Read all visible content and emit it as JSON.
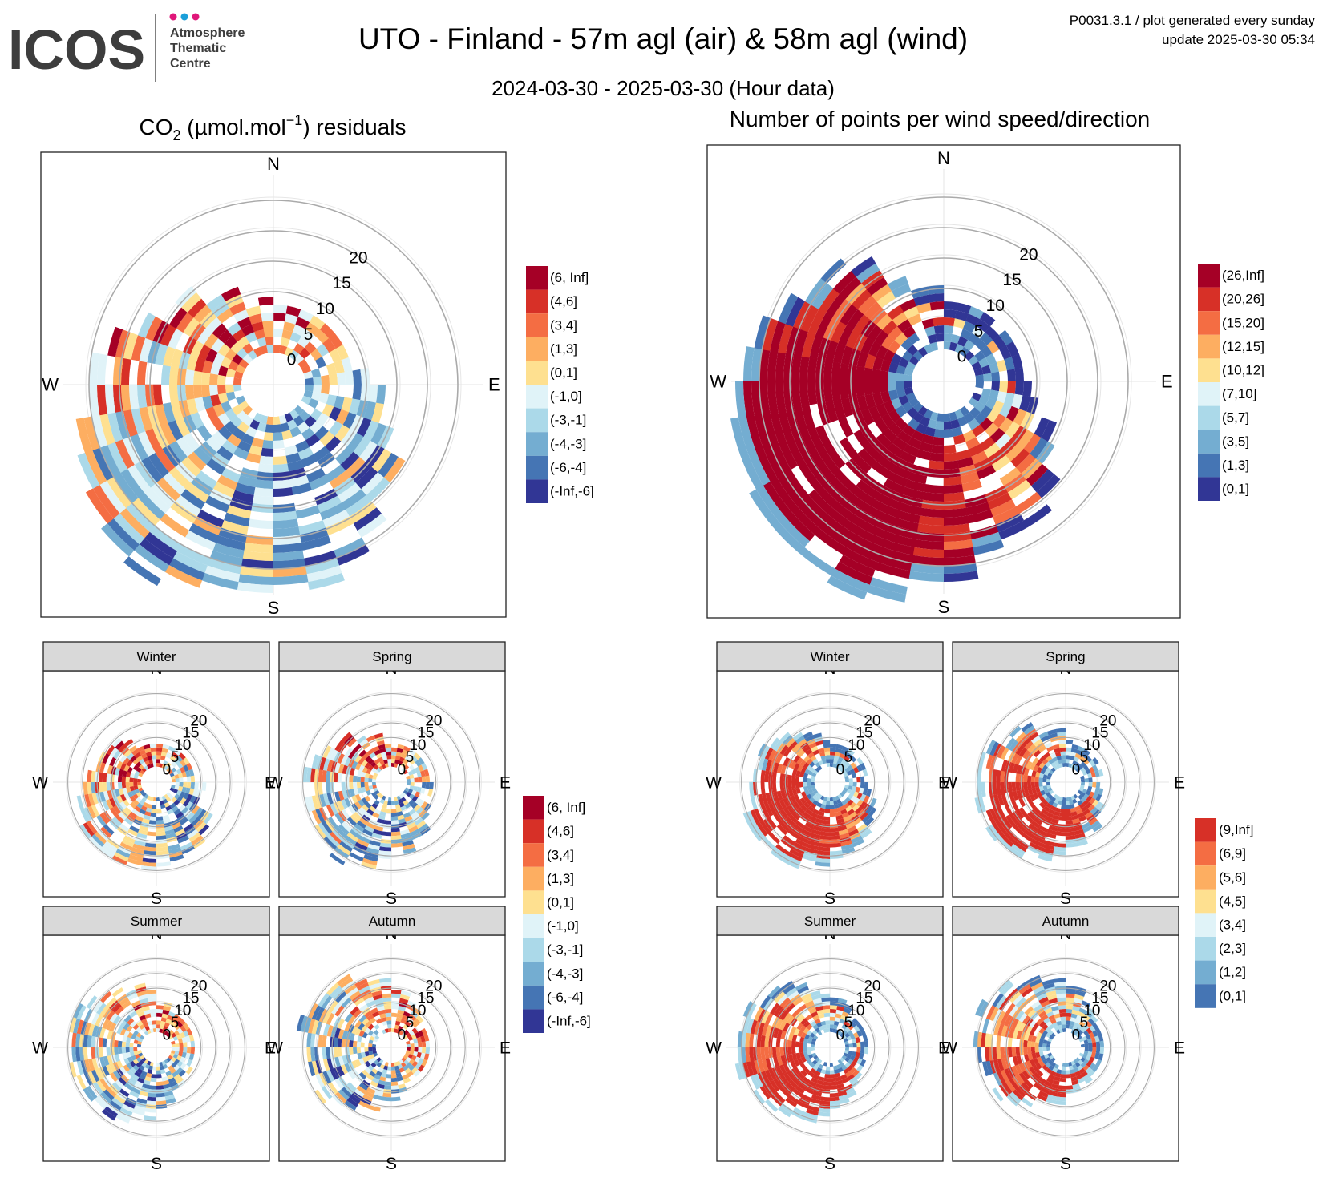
{
  "header": {
    "logo_text": "ICOS",
    "logo_sub": [
      "Atmosphere",
      "Thematic",
      "Centre"
    ],
    "title": "UTO - Finland - 57m agl (air) & 58m agl (wind)",
    "subtitle": "2024-03-30 - 2025-03-30 (Hour data)",
    "meta_line1": "P0031.3.1 / plot generated every sunday",
    "meta_line2": "update  2025-03-30 05:34"
  },
  "colors": {
    "logo_dots": [
      "#e0177a",
      "#1a9fd9",
      "#e0177a"
    ],
    "scale_residuals": [
      "#a50026",
      "#d73027",
      "#f46d43",
      "#fdae61",
      "#fee090",
      "#e0f3f8",
      "#abd9e9",
      "#74add1",
      "#4575b4",
      "#313695"
    ],
    "scale_counts": [
      "#a50026",
      "#d73027",
      "#f46d43",
      "#fdae61",
      "#fee090",
      "#e0f3f8",
      "#abd9e9",
      "#74add1",
      "#4575b4",
      "#313695"
    ],
    "scale_counts_seasonal": [
      "#d73027",
      "#f46d43",
      "#fdae61",
      "#fee090",
      "#e0f3f8",
      "#abd9e9",
      "#74add1",
      "#4575b4"
    ],
    "strip_fill": "#d9d9d9"
  },
  "compass": {
    "n": "N",
    "e": "E",
    "s": "S",
    "w": "W"
  },
  "chart_data": [
    {
      "id": "residuals-main",
      "type": "polar-heatmap",
      "title_main": "CO",
      "title_sub": "2",
      "title_mid": " (µmol.mol",
      "title_sup": "−1",
      "title_end": ") residuals",
      "radial_ticks": [
        "0",
        "5",
        "10",
        "15",
        "20"
      ],
      "legend": [
        "(6, Inf]",
        "(4,6]",
        "(3,4]",
        "(1,3]",
        "(0,1]",
        "(-1,0]",
        "(-3,-1]",
        "(-4,-3]",
        "(-6,-4]",
        "(-Inf,-6]"
      ]
    },
    {
      "id": "counts-main",
      "type": "polar-heatmap",
      "title": "Number of points per wind speed/direction",
      "radial_ticks": [
        "0",
        "5",
        "10",
        "15",
        "20"
      ],
      "legend": [
        "(26,Inf]",
        "(20,26]",
        "(15,20]",
        "(12,15]",
        "(10,12]",
        "(7,10]",
        "(5,7]",
        "(3,5]",
        "(1,3]",
        "(0,1]"
      ]
    },
    {
      "id": "residuals-seasonal",
      "type": "polar-heatmap",
      "panels": [
        "Winter",
        "Spring",
        "Summer",
        "Autumn"
      ],
      "radial_ticks": [
        "0",
        "5",
        "10",
        "15",
        "20"
      ],
      "legend": [
        "(6, Inf]",
        "(4,6]",
        "(3,4]",
        "(1,3]",
        "(0,1]",
        "(-1,0]",
        "(-3,-1]",
        "(-4,-3]",
        "(-6,-4]",
        "(-Inf,-6]"
      ]
    },
    {
      "id": "counts-seasonal",
      "type": "polar-heatmap",
      "panels": [
        "Winter",
        "Spring",
        "Summer",
        "Autumn"
      ],
      "radial_ticks": [
        "0",
        "5",
        "10",
        "15",
        "20"
      ],
      "legend": [
        "(9,Inf]",
        "(6,9]",
        "(5,6]",
        "(4,5]",
        "(3,4]",
        "(2,3]",
        "(1,2]",
        "(0,1]"
      ]
    }
  ]
}
